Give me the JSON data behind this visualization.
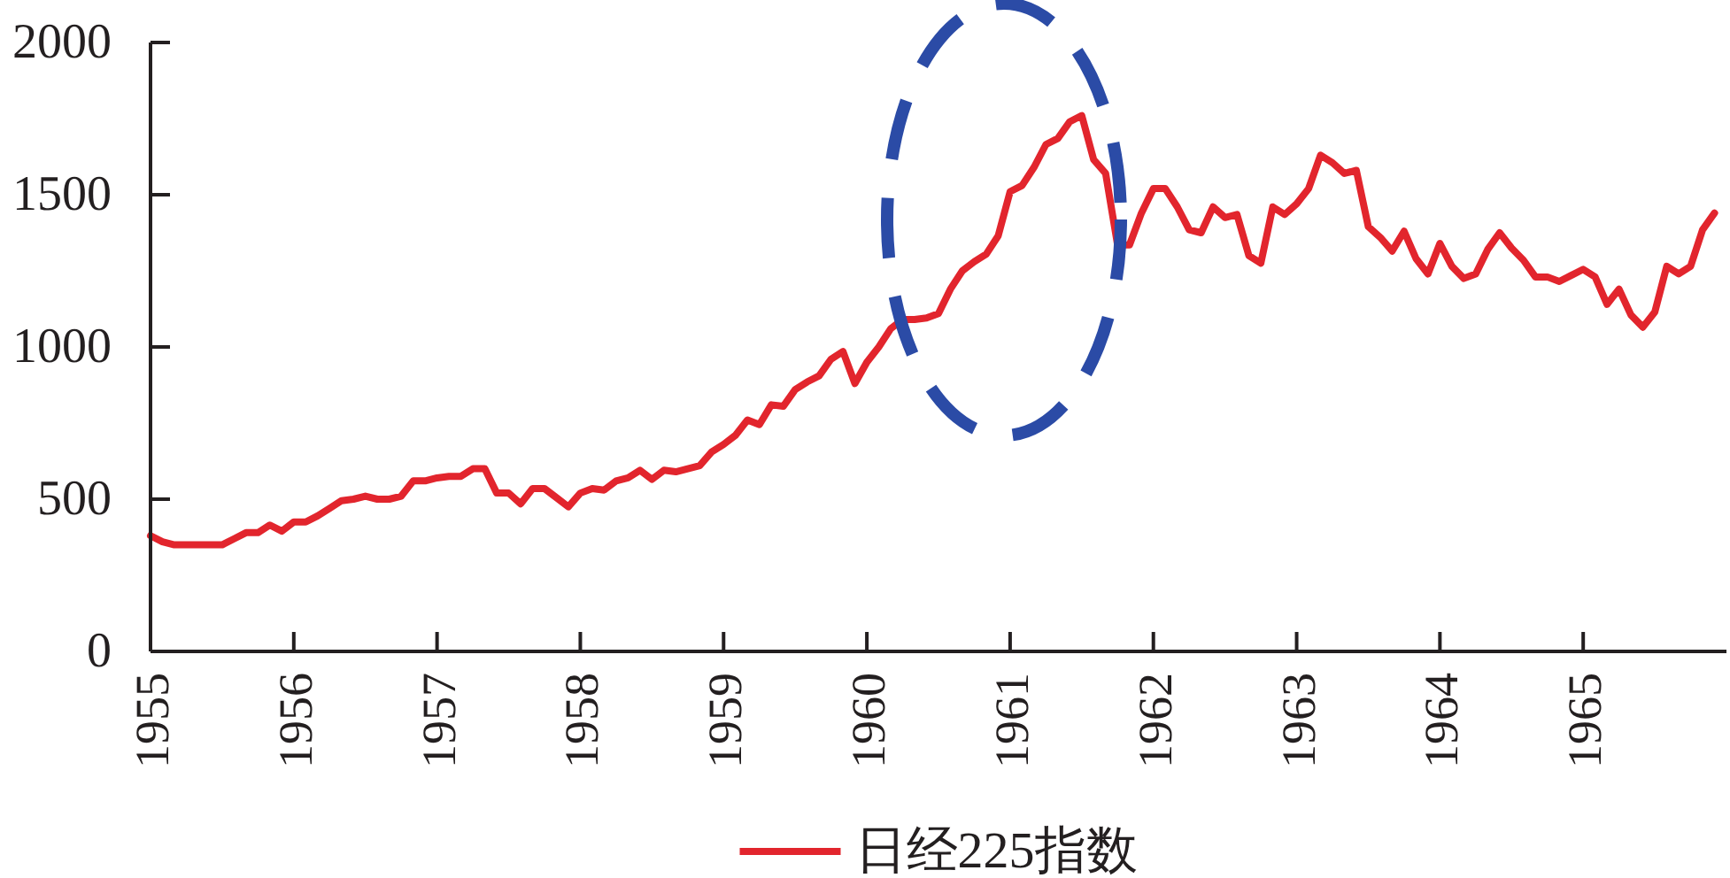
{
  "chart_data": {
    "type": "line",
    "x": [
      "1955-01",
      "1955-02",
      "1955-03",
      "1955-04",
      "1955-05",
      "1955-06",
      "1955-07",
      "1955-08",
      "1955-09",
      "1955-10",
      "1955-11",
      "1955-12",
      "1956-01",
      "1956-02",
      "1956-03",
      "1956-04",
      "1956-05",
      "1956-06",
      "1956-07",
      "1956-08",
      "1956-09",
      "1956-10",
      "1956-11",
      "1956-12",
      "1957-01",
      "1957-02",
      "1957-03",
      "1957-04",
      "1957-05",
      "1957-06",
      "1957-07",
      "1957-08",
      "1957-09",
      "1957-10",
      "1957-11",
      "1957-12",
      "1958-01",
      "1958-02",
      "1958-03",
      "1958-04",
      "1958-05",
      "1958-06",
      "1958-07",
      "1958-08",
      "1958-09",
      "1958-10",
      "1958-11",
      "1958-12",
      "1959-01",
      "1959-02",
      "1959-03",
      "1959-04",
      "1959-05",
      "1959-06",
      "1959-07",
      "1959-08",
      "1959-09",
      "1959-10",
      "1959-11",
      "1959-12",
      "1960-01",
      "1960-02",
      "1960-03",
      "1960-04",
      "1960-05",
      "1960-06",
      "1960-07",
      "1960-08",
      "1960-09",
      "1960-10",
      "1960-11",
      "1960-12",
      "1961-01",
      "1961-02",
      "1961-03",
      "1961-04",
      "1961-05",
      "1961-06",
      "1961-07",
      "1961-08",
      "1961-09",
      "1961-10",
      "1961-11",
      "1961-12",
      "1962-01",
      "1962-02",
      "1962-03",
      "1962-04",
      "1962-05",
      "1962-06",
      "1962-07",
      "1962-08",
      "1962-09",
      "1962-10",
      "1962-11",
      "1962-12",
      "1963-01",
      "1963-02",
      "1963-03",
      "1963-04",
      "1963-05",
      "1963-06",
      "1963-07",
      "1963-08",
      "1963-09",
      "1963-10",
      "1963-11",
      "1963-12",
      "1964-01",
      "1964-02",
      "1964-03",
      "1964-04",
      "1964-05",
      "1964-06",
      "1964-07",
      "1964-08",
      "1964-09",
      "1964-10",
      "1964-11",
      "1964-12",
      "1965-01",
      "1965-02",
      "1965-03",
      "1965-04",
      "1965-05",
      "1965-06",
      "1965-07",
      "1965-08",
      "1965-09",
      "1965-10",
      "1965-11",
      "1965-12"
    ],
    "series": [
      {
        "name": "日经225指数",
        "color": "#e2252d",
        "values": [
          380,
          360,
          350,
          350,
          350,
          350,
          350,
          370,
          390,
          390,
          415,
          395,
          425,
          425,
          445,
          470,
          495,
          500,
          510,
          500,
          500,
          510,
          560,
          560,
          570,
          575,
          575,
          600,
          600,
          520,
          520,
          485,
          535,
          535,
          505,
          475,
          520,
          535,
          530,
          560,
          570,
          595,
          565,
          595,
          590,
          600,
          610,
          655,
          680,
          710,
          760,
          745,
          810,
          805,
          860,
          885,
          905,
          960,
          985,
          880,
          950,
          1000,
          1060,
          1090,
          1090,
          1095,
          1110,
          1190,
          1250,
          1280,
          1305,
          1365,
          1510,
          1530,
          1590,
          1665,
          1685,
          1740,
          1760,
          1615,
          1570,
          1335,
          1335,
          1440,
          1520,
          1520,
          1460,
          1385,
          1375,
          1460,
          1425,
          1435,
          1300,
          1275,
          1460,
          1435,
          1470,
          1520,
          1630,
          1605,
          1570,
          1580,
          1395,
          1360,
          1315,
          1380,
          1290,
          1240,
          1340,
          1265,
          1225,
          1240,
          1320,
          1375,
          1325,
          1285,
          1230,
          1230,
          1215,
          1235,
          1255,
          1230,
          1140,
          1190,
          1105,
          1065,
          1115,
          1265,
          1240,
          1265,
          1385,
          1440
        ]
      }
    ],
    "xlim": [
      "1955",
      "1966"
    ],
    "xticks": [
      "1955",
      "1956",
      "1957",
      "1958",
      "1959",
      "1960",
      "1961",
      "1962",
      "1963",
      "1964",
      "1965"
    ],
    "ylim": [
      0,
      2000
    ],
    "yticks": [
      0,
      500,
      1000,
      1500,
      2000
    ],
    "line_style": "solid",
    "legend": "bottom",
    "grid": false
  }
}
